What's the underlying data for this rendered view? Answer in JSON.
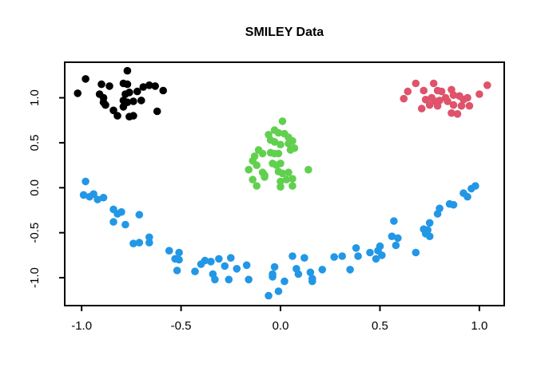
{
  "chart_data": {
    "type": "scatter",
    "title": "SMILEY Data",
    "xlabel": "",
    "ylabel": "",
    "xlim": [
      -1.085,
      1.125
    ],
    "ylim": [
      -1.31,
      1.395
    ],
    "x_ticks": [
      "-1.0",
      "-0.5",
      "0.0",
      "0.5",
      "1.0"
    ],
    "y_ticks": [
      "-1.0",
      "-0.5",
      "0.0",
      "0.5",
      "1.0"
    ],
    "grid": false,
    "legend": "none",
    "marker": "filled-circle",
    "point_radius_px": 4.8,
    "axis_color": "#000000",
    "background_color": "#ffffff",
    "series": [
      {
        "name": "left-eye",
        "color": "#000000",
        "points": [
          [
            -0.77,
            1.3
          ],
          [
            -0.98,
            1.21
          ],
          [
            -0.9,
            1.15
          ],
          [
            -0.86,
            1.13
          ],
          [
            -0.79,
            1.16
          ],
          [
            -0.77,
            1.15
          ],
          [
            -0.69,
            1.12
          ],
          [
            -0.66,
            1.14
          ],
          [
            -0.63,
            1.13
          ],
          [
            -0.59,
            1.08
          ],
          [
            -1.02,
            1.05
          ],
          [
            -0.91,
            1.04
          ],
          [
            -0.89,
            1.0
          ],
          [
            -0.78,
            1.04
          ],
          [
            -0.76,
            1.06
          ],
          [
            -0.72,
            1.07
          ],
          [
            -0.7,
            0.97
          ],
          [
            -0.79,
            0.97
          ],
          [
            -0.77,
            0.95
          ],
          [
            -0.74,
            0.96
          ],
          [
            -0.89,
            0.95
          ],
          [
            -0.88,
            0.92
          ],
          [
            -0.84,
            0.86
          ],
          [
            -0.79,
            0.9
          ],
          [
            -0.62,
            0.85
          ],
          [
            -0.82,
            0.8
          ],
          [
            -0.76,
            0.79
          ],
          [
            -0.74,
            0.8
          ]
        ]
      },
      {
        "name": "right-eye",
        "color": "#DF536B",
        "points": [
          [
            0.68,
            1.16
          ],
          [
            0.77,
            1.16
          ],
          [
            0.64,
            1.07
          ],
          [
            0.72,
            1.08
          ],
          [
            0.79,
            1.08
          ],
          [
            0.81,
            1.07
          ],
          [
            0.86,
            1.09
          ],
          [
            0.87,
            1.03
          ],
          [
            0.83,
            1.0
          ],
          [
            0.76,
            1.0
          ],
          [
            0.73,
            0.98
          ],
          [
            0.78,
            0.96
          ],
          [
            0.8,
            0.97
          ],
          [
            0.84,
            0.96
          ],
          [
            0.9,
            1.02
          ],
          [
            0.92,
            0.98
          ],
          [
            0.94,
            1.0
          ],
          [
            1.0,
            1.04
          ],
          [
            1.04,
            1.14
          ],
          [
            0.62,
            0.99
          ],
          [
            0.71,
            0.88
          ],
          [
            0.75,
            0.92
          ],
          [
            0.79,
            0.91
          ],
          [
            0.87,
            0.92
          ],
          [
            0.91,
            0.91
          ],
          [
            0.95,
            0.91
          ],
          [
            0.86,
            0.83
          ],
          [
            0.89,
            0.82
          ]
        ]
      },
      {
        "name": "nose",
        "color": "#61D04F",
        "points": [
          [
            0.01,
            0.74
          ],
          [
            -0.03,
            0.64
          ],
          [
            -0.01,
            0.61
          ],
          [
            0.02,
            0.6
          ],
          [
            -0.06,
            0.59
          ],
          [
            -0.05,
            0.53
          ],
          [
            -0.03,
            0.51
          ],
          [
            0.04,
            0.56
          ],
          [
            0.06,
            0.52
          ],
          [
            0.04,
            0.49
          ],
          [
            0.0,
            0.48
          ],
          [
            -0.11,
            0.42
          ],
          [
            -0.09,
            0.38
          ],
          [
            -0.13,
            0.35
          ],
          [
            -0.05,
            0.39
          ],
          [
            -0.03,
            0.38
          ],
          [
            -0.01,
            0.38
          ],
          [
            0.05,
            0.42
          ],
          [
            0.07,
            0.44
          ],
          [
            -0.14,
            0.3
          ],
          [
            -0.12,
            0.25
          ],
          [
            -0.04,
            0.27
          ],
          [
            -0.02,
            0.25
          ],
          [
            0.0,
            0.27
          ],
          [
            -0.16,
            0.2
          ],
          [
            -0.09,
            0.17
          ],
          [
            -0.08,
            0.14
          ],
          [
            -0.01,
            0.18
          ],
          [
            0.01,
            0.16
          ],
          [
            0.04,
            0.17
          ],
          [
            0.14,
            0.2
          ],
          [
            -0.14,
            0.09
          ],
          [
            -0.08,
            0.12
          ],
          [
            0.0,
            0.07
          ],
          [
            0.03,
            0.09
          ],
          [
            0.06,
            0.1
          ],
          [
            -0.12,
            0.02
          ],
          [
            0.0,
            0.01
          ],
          [
            0.06,
            0.02
          ]
        ]
      },
      {
        "name": "mouth",
        "color": "#2297E6",
        "points": [
          [
            -0.98,
            0.07
          ],
          [
            -0.99,
            -0.08
          ],
          [
            -0.96,
            -0.1
          ],
          [
            -0.94,
            -0.07
          ],
          [
            -0.92,
            -0.13
          ],
          [
            -0.89,
            -0.11
          ],
          [
            -0.84,
            -0.24
          ],
          [
            -0.82,
            -0.29
          ],
          [
            -0.8,
            -0.27
          ],
          [
            -0.84,
            -0.38
          ],
          [
            -0.78,
            -0.41
          ],
          [
            -0.71,
            -0.3
          ],
          [
            -0.66,
            -0.55
          ],
          [
            -0.74,
            -0.62
          ],
          [
            -0.71,
            -0.61
          ],
          [
            -0.66,
            -0.61
          ],
          [
            -0.56,
            -0.7
          ],
          [
            -0.51,
            -0.72
          ],
          [
            -0.53,
            -0.79
          ],
          [
            -0.51,
            -0.8
          ],
          [
            -0.52,
            -0.92
          ],
          [
            -0.43,
            -0.93
          ],
          [
            -0.4,
            -0.85
          ],
          [
            -0.38,
            -0.81
          ],
          [
            -0.35,
            -0.82
          ],
          [
            -0.34,
            -0.96
          ],
          [
            -0.33,
            -1.02
          ],
          [
            -0.31,
            -0.79
          ],
          [
            -0.28,
            -0.87
          ],
          [
            -0.25,
            -0.78
          ],
          [
            -0.26,
            -1.02
          ],
          [
            -0.22,
            -0.9
          ],
          [
            -0.17,
            -0.86
          ],
          [
            -0.16,
            -1.02
          ],
          [
            -0.06,
            -1.2
          ],
          [
            -0.03,
            -0.88
          ],
          [
            -0.04,
            -0.96
          ],
          [
            -0.04,
            -0.99
          ],
          [
            -0.01,
            -1.15
          ],
          [
            0.02,
            -1.04
          ],
          [
            0.06,
            -0.76
          ],
          [
            0.08,
            -0.9
          ],
          [
            0.09,
            -0.96
          ],
          [
            0.12,
            -0.78
          ],
          [
            0.15,
            -0.94
          ],
          [
            0.16,
            -1.01
          ],
          [
            0.16,
            -1.04
          ],
          [
            0.21,
            -0.91
          ],
          [
            0.27,
            -0.77
          ],
          [
            0.31,
            -0.76
          ],
          [
            0.35,
            -0.91
          ],
          [
            0.38,
            -0.67
          ],
          [
            0.39,
            -0.76
          ],
          [
            0.45,
            -0.72
          ],
          [
            0.48,
            -0.79
          ],
          [
            0.49,
            -0.7
          ],
          [
            0.5,
            -0.65
          ],
          [
            0.51,
            -0.75
          ],
          [
            0.56,
            -0.54
          ],
          [
            0.57,
            -0.37
          ],
          [
            0.58,
            -0.64
          ],
          [
            0.59,
            -0.56
          ],
          [
            0.68,
            -0.72
          ],
          [
            0.72,
            -0.46
          ],
          [
            0.73,
            -0.51
          ],
          [
            0.74,
            -0.47
          ],
          [
            0.75,
            -0.54
          ],
          [
            0.75,
            -0.39
          ],
          [
            0.79,
            -0.29
          ],
          [
            0.8,
            -0.23
          ],
          [
            0.85,
            -0.18
          ],
          [
            0.87,
            -0.19
          ],
          [
            0.92,
            -0.06
          ],
          [
            0.94,
            -0.1
          ],
          [
            0.96,
            -0.01
          ],
          [
            0.98,
            0.02
          ]
        ]
      }
    ]
  }
}
